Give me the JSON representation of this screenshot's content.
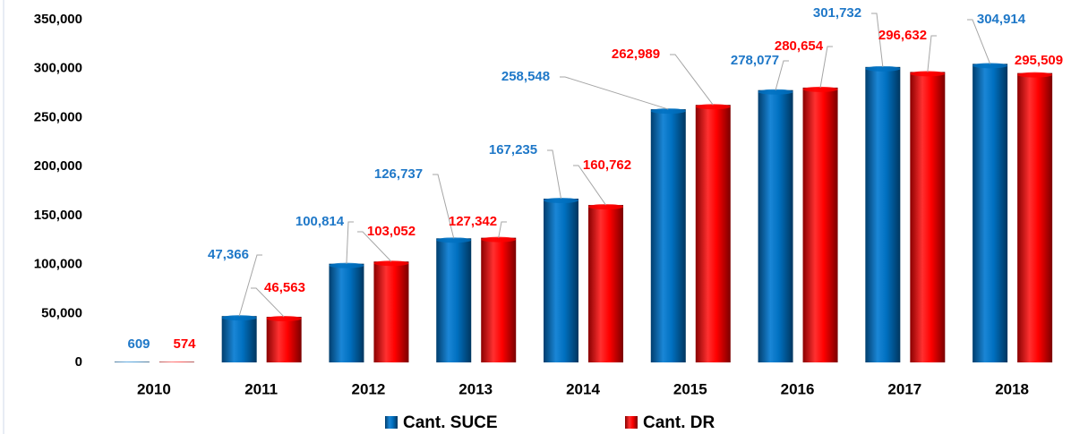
{
  "chart_data": {
    "type": "bar",
    "categories": [
      "2010",
      "2011",
      "2012",
      "2013",
      "2014",
      "2015",
      "2016",
      "2017",
      "2018"
    ],
    "series": [
      {
        "name": "Cant. SUCE",
        "color": "#0070c0",
        "values": [
          609,
          47366,
          100814,
          126737,
          167235,
          258548,
          278077,
          301732,
          304914
        ],
        "value_labels": [
          "609",
          "47,366",
          "100,814",
          "126,737",
          "167,235",
          "258,548",
          "278,077",
          "301,732",
          "304,914"
        ]
      },
      {
        "name": "Cant. DR",
        "color": "#ff0000",
        "values": [
          574,
          46563,
          103052,
          127342,
          160762,
          262989,
          280654,
          296632,
          295509
        ],
        "value_labels": [
          "574",
          "46,563",
          "103,052",
          "127,342",
          "160,762",
          "262,989",
          "280,654",
          "296,632",
          "295,509"
        ]
      }
    ],
    "ylim": [
      0,
      350000
    ],
    "yticks": [
      0,
      {
        "value": 50000,
        "label": "50,000"
      },
      {
        "value": 100000,
        "label": "100,000"
      },
      {
        "value": 150000,
        "label": "150,000"
      },
      {
        "value": 200000,
        "label": "200,000"
      },
      {
        "value": 250000,
        "label": "250,000"
      },
      {
        "value": 300000,
        "label": "300,000"
      },
      {
        "value": 350000,
        "label": "350,000"
      }
    ],
    "legend": "bottom"
  }
}
